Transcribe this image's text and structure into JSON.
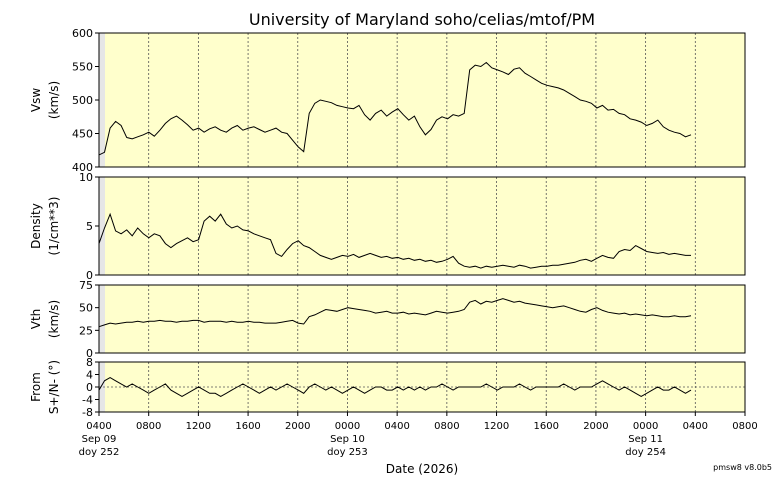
{
  "chart_data": {
    "type": "line",
    "title": "University of Maryland  soho/celias/mtof/PM",
    "xlabel": "Date (2026)",
    "version": "pmsw8 v8.0b5",
    "x_ticks": [
      "0400",
      "0800",
      "1200",
      "1600",
      "2000",
      "0000",
      "0400",
      "0800",
      "1200",
      "1600",
      "2000",
      "0000",
      "0400",
      "0800"
    ],
    "date_labels": [
      {
        "date": "Sep 09",
        "doy": "doy 252",
        "tick": 0
      },
      {
        "date": "Sep 10",
        "doy": "doy 253",
        "tick": 5
      },
      {
        "date": "Sep 11",
        "doy": "doy 254",
        "tick": 11
      }
    ],
    "grid": true,
    "background_color": "#ffffcc",
    "line_color": "#000000",
    "panels": [
      {
        "ylabel": [
          "Vsw",
          "(km/s)"
        ],
        "ylim": [
          400,
          600
        ],
        "yticks": [
          "400",
          "450",
          "500",
          "550",
          "600"
        ],
        "series": [
          {
            "values": [
              418,
              422,
              458,
              468,
              462,
              444,
              442,
              445,
              448,
              452,
              446,
              455,
              465,
              472,
              476,
              470,
              463,
              455,
              458,
              452,
              457,
              460,
              455,
              452,
              458,
              462,
              455,
              458,
              460,
              456,
              452,
              455,
              458,
              452,
              450,
              440,
              430,
              423,
              480,
              495,
              500,
              498,
              496,
              492,
              490,
              488,
              487,
              492,
              478,
              470,
              480,
              485,
              476,
              482,
              487,
              478,
              470,
              476,
              460,
              448,
              456,
              470,
              475,
              472,
              478,
              476,
              480,
              545,
              552,
              550,
              556,
              548,
              545,
              542,
              538,
              546,
              548,
              540,
              535,
              530,
              525,
              522,
              520,
              518,
              515,
              510,
              505,
              500,
              498,
              495,
              488,
              492,
              485,
              486,
              480,
              478,
              472,
              470,
              467,
              462,
              465,
              470,
              460,
              455,
              452,
              450,
              445,
              448
            ]
          }
        ]
      },
      {
        "ylabel": [
          "Density",
          "(1/cm**3)"
        ],
        "ylim": [
          0,
          10
        ],
        "yticks": [
          "0",
          "5",
          "10"
        ],
        "series": [
          {
            "values": [
              3.2,
              4.8,
              6.2,
              4.5,
              4.2,
              4.6,
              4.0,
              4.8,
              4.2,
              3.8,
              4.2,
              4.0,
              3.2,
              2.8,
              3.2,
              3.5,
              3.8,
              3.4,
              3.6,
              5.5,
              6.0,
              5.5,
              6.2,
              5.2,
              4.8,
              5.0,
              4.6,
              4.5,
              4.2,
              4.0,
              3.8,
              3.6,
              2.2,
              1.9,
              2.6,
              3.2,
              3.5,
              3.0,
              2.8,
              2.4,
              2.0,
              1.8,
              1.6,
              1.8,
              2.0,
              1.9,
              2.1,
              1.8,
              2.0,
              2.2,
              2.0,
              1.8,
              1.9,
              1.7,
              1.8,
              1.6,
              1.7,
              1.5,
              1.6,
              1.4,
              1.5,
              1.3,
              1.4,
              1.6,
              1.9,
              1.2,
              0.9,
              0.8,
              0.9,
              0.7,
              0.9,
              0.8,
              0.9,
              1.0,
              0.9,
              0.8,
              1.0,
              0.9,
              0.7,
              0.8,
              0.9,
              0.9,
              1.0,
              1.0,
              1.1,
              1.2,
              1.3,
              1.5,
              1.6,
              1.4,
              1.7,
              2.0,
              1.8,
              1.7,
              2.4,
              2.6,
              2.5,
              3.0,
              2.7,
              2.4,
              2.3,
              2.2,
              2.3,
              2.1,
              2.2,
              2.1,
              2.0,
              2.0
            ]
          }
        ]
      },
      {
        "ylabel": [
          "Vth",
          "(km/s)"
        ],
        "ylim": [
          0,
          75
        ],
        "yticks": [
          "0",
          "25",
          "50",
          "75"
        ],
        "series": [
          {
            "values": [
              29,
              31,
              33,
              32,
              33,
              34,
              34,
              35,
              34,
              35,
              35,
              36,
              35,
              35,
              34,
              35,
              35,
              36,
              36,
              34,
              35,
              35,
              35,
              34,
              35,
              34,
              34,
              35,
              34,
              34,
              33,
              33,
              33,
              34,
              35,
              36,
              33,
              32,
              40,
              42,
              45,
              48,
              47,
              46,
              48,
              50,
              49,
              48,
              47,
              46,
              44,
              45,
              46,
              44,
              44,
              45,
              43,
              44,
              43,
              42,
              44,
              46,
              45,
              44,
              45,
              46,
              48,
              56,
              58,
              54,
              57,
              56,
              58,
              60,
              58,
              56,
              57,
              55,
              54,
              53,
              52,
              51,
              50,
              51,
              52,
              50,
              48,
              46,
              45,
              48,
              50,
              47,
              45,
              44,
              43,
              44,
              42,
              43,
              42,
              41,
              42,
              41,
              40,
              40,
              41,
              40,
              40,
              41
            ]
          }
        ]
      },
      {
        "ylabel": [
          "From",
          "S+/N- (°)"
        ],
        "ylim": [
          -8,
          8
        ],
        "yticks": [
          "8",
          "4",
          "0",
          "-4",
          "-8"
        ],
        "series": [
          {
            "values": [
              -1,
              2,
              3,
              2,
              1,
              0,
              1,
              0,
              -1,
              -2,
              -1,
              0,
              1,
              -1,
              -2,
              -3,
              -2,
              -1,
              0,
              -1,
              -2,
              -2,
              -3,
              -2,
              -1,
              0,
              1,
              0,
              -1,
              -2,
              -1,
              0,
              -1,
              0,
              1,
              0,
              -1,
              -2,
              0,
              1,
              0,
              -1,
              0,
              -1,
              -2,
              -1,
              0,
              -1,
              -2,
              -1,
              0,
              0,
              -1,
              -1,
              0,
              -1,
              0,
              -1,
              0,
              -1,
              0,
              0,
              1,
              0,
              -1,
              0,
              0,
              0,
              0,
              0,
              1,
              0,
              -1,
              0,
              0,
              0,
              1,
              0,
              -1,
              0,
              0,
              0,
              0,
              0,
              1,
              0,
              -1,
              0,
              0,
              0,
              1,
              2,
              1,
              0,
              -1,
              0,
              -1,
              -2,
              -3,
              -2,
              -1,
              0,
              -1,
              -1,
              0,
              -1,
              -2,
              -1
            ]
          }
        ]
      }
    ]
  }
}
